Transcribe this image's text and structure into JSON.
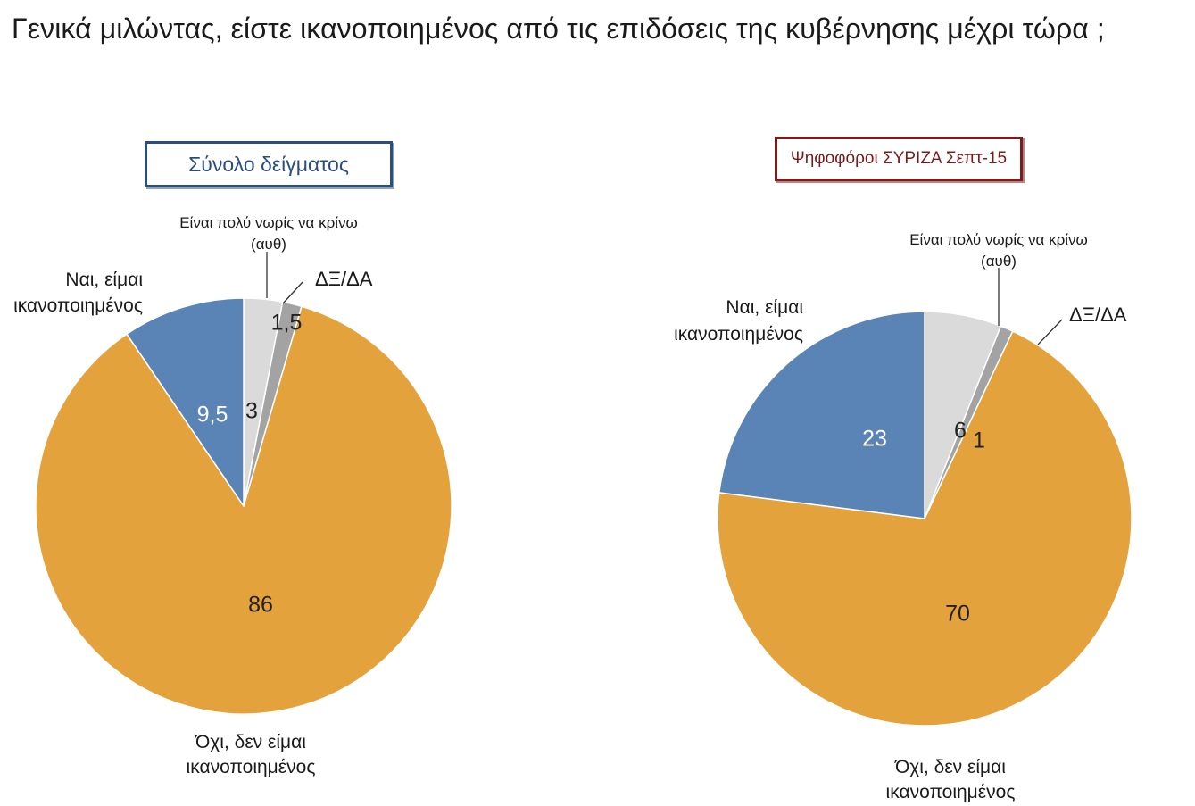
{
  "title": "Γενικά μιλώντας, είστε ικανοποιημένος από τις επιδόσεις της κυβέρνησης μέχρι τώρα ;",
  "colors": {
    "yes": "#5b84b6",
    "too_early": "#dadada",
    "dk_na": "#a3a3a3",
    "no": "#e4a23d"
  },
  "chart_data": [
    {
      "type": "pie",
      "panel_title": "Σύνολο δείγματος",
      "slices": [
        {
          "key": "too_early",
          "label": [
            "Είναι πολύ νωρίς να κρίνω",
            "(αυθ)"
          ],
          "value": 3,
          "value_label": "3"
        },
        {
          "key": "dk_na",
          "label": [
            "ΔΞ/ΔΑ"
          ],
          "value": 1.5,
          "value_label": "1,5"
        },
        {
          "key": "no",
          "label": [
            "Όχι, δεν είμαι",
            "ικανοποιημένος"
          ],
          "value": 86,
          "value_label": "86"
        },
        {
          "key": "yes",
          "label": [
            "Ναι, είμαι",
            "ικανοποιημένος"
          ],
          "value": 9.5,
          "value_label": "9,5"
        }
      ]
    },
    {
      "type": "pie",
      "panel_title": "Ψηφοφόροι ΣΥΡΙΖΑ Σεπτ-15",
      "slices": [
        {
          "key": "too_early",
          "label": [
            "Είναι πολύ νωρίς να κρίνω",
            "(αυθ)"
          ],
          "value": 6,
          "value_label": "6"
        },
        {
          "key": "dk_na",
          "label": [
            "ΔΞ/ΔΑ"
          ],
          "value": 1,
          "value_label": "1"
        },
        {
          "key": "no",
          "label": [
            "Όχι, δεν είμαι",
            "ικανοποιημένος"
          ],
          "value": 70,
          "value_label": "70"
        },
        {
          "key": "yes",
          "label": [
            "Ναι, είμαι",
            "ικανοποιημένος"
          ],
          "value": 23,
          "value_label": "23"
        }
      ]
    }
  ]
}
